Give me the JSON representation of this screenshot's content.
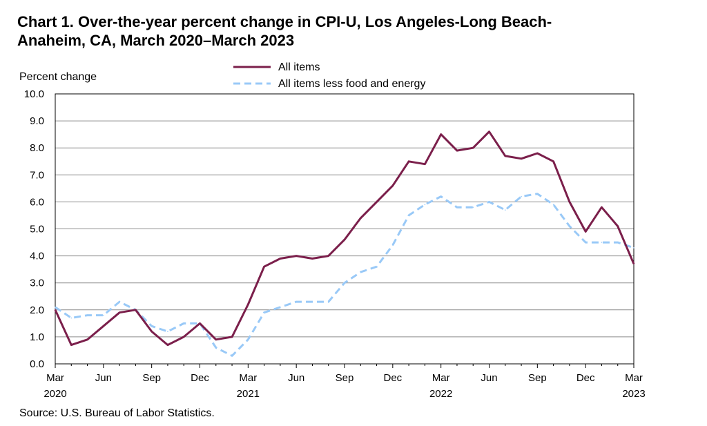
{
  "chart_data": {
    "type": "line",
    "title_line1": "Chart 1. Over-the-year percent change in CPI-U, Los Angeles-Long  Beach-",
    "title_line2": "Anaheim,  CA, March 2020–March 2023",
    "ylabel": "Percent change",
    "xlabel": "",
    "source": "Source: U.S. Bureau of Labor Statistics.",
    "ylim": [
      0,
      10
    ],
    "yticks": [
      "0.0",
      "1.0",
      "2.0",
      "3.0",
      "4.0",
      "5.0",
      "6.0",
      "7.0",
      "8.0",
      "9.0",
      "10.0"
    ],
    "grid": true,
    "legend_position": "top-center",
    "x": [
      "Mar 2020",
      "Apr 2020",
      "May 2020",
      "Jun 2020",
      "Jul 2020",
      "Aug 2020",
      "Sep 2020",
      "Oct 2020",
      "Nov 2020",
      "Dec 2020",
      "Jan 2021",
      "Feb 2021",
      "Mar 2021",
      "Apr 2021",
      "May 2021",
      "Jun 2021",
      "Jul 2021",
      "Aug 2021",
      "Sep 2021",
      "Oct 2021",
      "Nov 2021",
      "Dec 2021",
      "Jan 2022",
      "Feb 2022",
      "Mar 2022",
      "Apr 2022",
      "May 2022",
      "Jun 2022",
      "Jul 2022",
      "Aug 2022",
      "Sep 2022",
      "Oct 2022",
      "Nov 2022",
      "Dec 2022",
      "Jan 2023",
      "Feb 2023",
      "Mar 2023"
    ],
    "xticks": [
      {
        "index": 0,
        "line1": "Mar",
        "line2": "2020"
      },
      {
        "index": 3,
        "line1": "Jun",
        "line2": ""
      },
      {
        "index": 6,
        "line1": "Sep",
        "line2": ""
      },
      {
        "index": 9,
        "line1": "Dec",
        "line2": ""
      },
      {
        "index": 12,
        "line1": "Mar",
        "line2": "2021"
      },
      {
        "index": 15,
        "line1": "Jun",
        "line2": ""
      },
      {
        "index": 18,
        "line1": "Sep",
        "line2": ""
      },
      {
        "index": 21,
        "line1": "Dec",
        "line2": ""
      },
      {
        "index": 24,
        "line1": "Mar",
        "line2": "2022"
      },
      {
        "index": 27,
        "line1": "Jun",
        "line2": ""
      },
      {
        "index": 30,
        "line1": "Sep",
        "line2": ""
      },
      {
        "index": 33,
        "line1": "Dec",
        "line2": ""
      },
      {
        "index": 36,
        "line1": "Mar",
        "line2": "2023"
      }
    ],
    "series": [
      {
        "name": "All items",
        "color": "#7b1f4b",
        "style": "solid",
        "values": [
          2.0,
          0.7,
          0.9,
          1.4,
          1.9,
          2.0,
          1.2,
          0.7,
          1.0,
          1.5,
          0.9,
          1.0,
          2.2,
          3.6,
          3.9,
          4.0,
          3.9,
          4.0,
          4.6,
          5.4,
          6.0,
          6.6,
          7.5,
          7.4,
          8.5,
          7.9,
          8.0,
          8.6,
          7.7,
          7.6,
          7.8,
          7.5,
          6.0,
          4.9,
          5.8,
          5.1,
          3.7
        ]
      },
      {
        "name": "All items less food and energy",
        "color": "#99c9f7",
        "style": "dashed",
        "values": [
          2.1,
          1.7,
          1.8,
          1.8,
          2.3,
          2.0,
          1.4,
          1.2,
          1.5,
          1.5,
          0.6,
          0.3,
          0.9,
          1.9,
          2.1,
          2.3,
          2.3,
          2.3,
          3.0,
          3.4,
          3.6,
          4.4,
          5.5,
          5.9,
          6.2,
          5.8,
          5.8,
          6.0,
          5.7,
          6.2,
          6.3,
          5.9,
          5.1,
          4.5,
          4.5,
          4.5,
          4.3
        ]
      }
    ]
  }
}
